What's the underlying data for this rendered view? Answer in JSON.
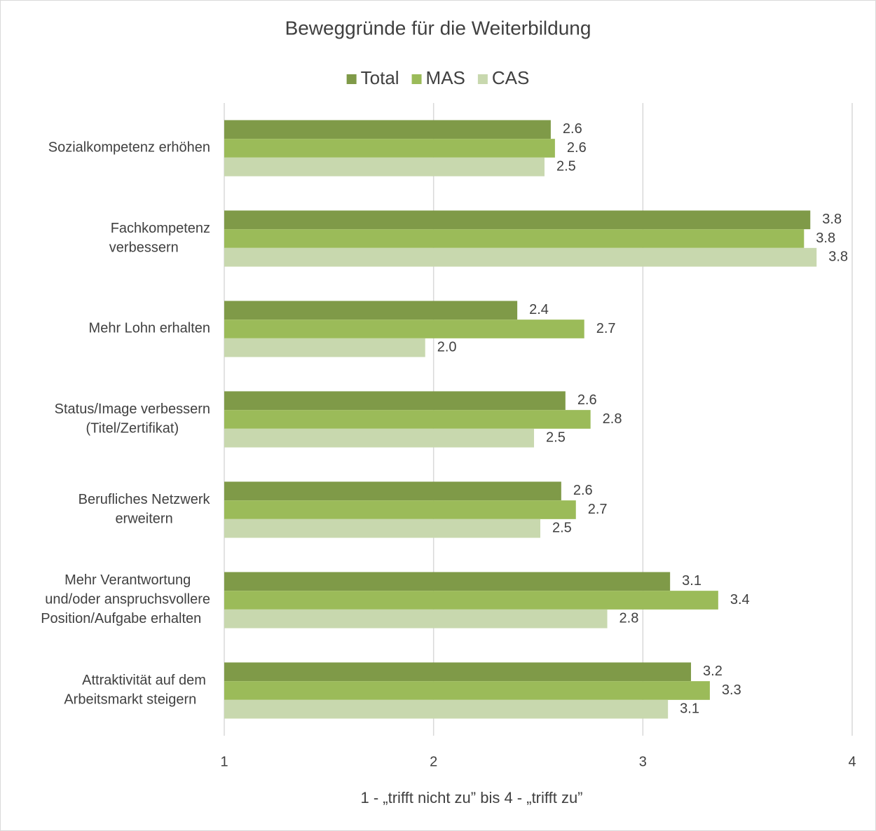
{
  "chart_data": {
    "type": "hbar",
    "title": "Beweggründe für die Weiterbildung",
    "x_label": "1 - „trifft nicht zu” bis 4 - „trifft zu”",
    "legend": "top",
    "grid": true,
    "xlim": [
      1,
      4
    ],
    "xticks": [
      1,
      2,
      3,
      4
    ],
    "categories": [
      "Sozialkompetenz erhöhen",
      "Fachkompetenz\nverbessern",
      "Mehr Lohn erhalten",
      "Status/Image verbessern\n(Titel/Zertifikat)",
      "Berufliches Netzwerk\nerweitern",
      "Mehr Verantwortung\nund/oder anspruchsvollere\nPosition/Aufgabe erhalten",
      "Attraktivität auf dem\nArbeitsmarkt steigern"
    ],
    "series": [
      {
        "name": "Total",
        "color": "#7f9a48",
        "values": [
          2.56,
          3.8,
          2.4,
          2.63,
          2.61,
          3.13,
          3.23
        ],
        "value_labels": [
          "2.6",
          "3.8",
          "2.4",
          "2.6",
          "2.6",
          "3.1",
          "3.2"
        ]
      },
      {
        "name": "MAS",
        "color": "#9bbb59",
        "values": [
          2.58,
          3.77,
          2.72,
          2.75,
          2.68,
          3.36,
          3.32
        ],
        "value_labels": [
          "2.6",
          "3.8",
          "2.7",
          "2.8",
          "2.7",
          "3.4",
          "3.3"
        ]
      },
      {
        "name": "CAS",
        "color": "#c8d8ae",
        "values": [
          2.53,
          3.83,
          1.96,
          2.48,
          2.51,
          2.83,
          3.12
        ],
        "value_labels": [
          "2.5",
          "3.8",
          "2.0",
          "2.5",
          "2.5",
          "2.8",
          "3.1"
        ]
      }
    ]
  }
}
